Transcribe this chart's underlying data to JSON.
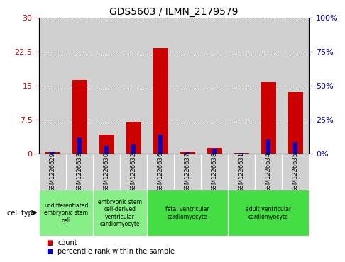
{
  "title": "GDS5603 / ILMN_2179579",
  "samples": [
    "GSM1226629",
    "GSM1226633",
    "GSM1226630",
    "GSM1226632",
    "GSM1226636",
    "GSM1226637",
    "GSM1226638",
    "GSM1226631",
    "GSM1226634",
    "GSM1226635"
  ],
  "counts": [
    0.3,
    16.2,
    4.2,
    7.0,
    23.2,
    0.4,
    1.2,
    0.2,
    15.8,
    13.5
  ],
  "percentiles": [
    1.5,
    12.0,
    6.0,
    7.0,
    14.0,
    1.2,
    3.5,
    0.5,
    10.5,
    8.5
  ],
  "count_color": "#cc0000",
  "percentile_color": "#0000cc",
  "ylim_left": [
    0,
    30
  ],
  "ylim_right": [
    0,
    100
  ],
  "yticks_left": [
    0,
    7.5,
    15,
    22.5,
    30
  ],
  "ytick_labels_left": [
    "0",
    "7.5",
    "15",
    "22.5",
    "30"
  ],
  "yticks_right": [
    0,
    25,
    50,
    75,
    100
  ],
  "ytick_labels_right": [
    "0%",
    "25%",
    "50%",
    "75%",
    "100%"
  ],
  "cell_type_groups": [
    {
      "label": "undifferentiated\nembryonic stem\ncell",
      "span": [
        0,
        1
      ],
      "color": "#88ee88"
    },
    {
      "label": "embryonic stem\ncell-derived\nventricular\ncardiomyocyte",
      "span": [
        2,
        3
      ],
      "color": "#88ee88"
    },
    {
      "label": "fetal ventricular\ncardiomyocyte",
      "span": [
        4,
        6
      ],
      "color": "#44dd44"
    },
    {
      "label": "adult ventricular\ncardiomyocyte",
      "span": [
        7,
        9
      ],
      "color": "#44dd44"
    }
  ],
  "cell_type_label": "cell type",
  "legend_count": "count",
  "legend_percentile": "percentile rank within the sample",
  "bar_bg_color": "#d0d0d0",
  "grid_color": "#000000"
}
